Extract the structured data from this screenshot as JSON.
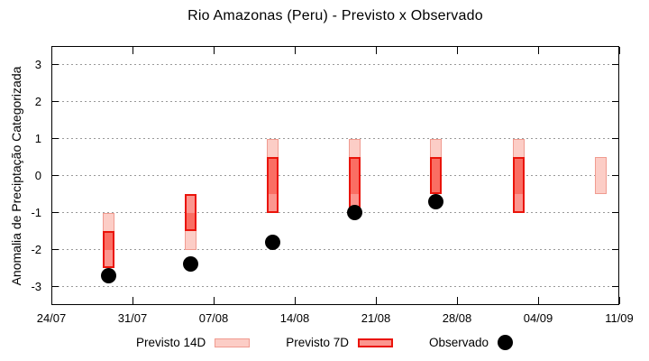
{
  "title": "Rio Amazonas (Peru) - Previsto x Observado",
  "chart_data": {
    "type": "bar",
    "subtype": "forecast-range-boxes-with-observed-scatter",
    "title": "Rio Amazonas (Peru) - Previsto x Observado",
    "xlabel": "",
    "ylabel": "Anomalia de Preciptação Categorizada",
    "ylim": [
      -3.5,
      3.5
    ],
    "yticks": [
      3,
      2,
      1,
      0,
      -1,
      -2,
      -3
    ],
    "xtick_labels": [
      "24/07",
      "31/07",
      "07/08",
      "14/08",
      "21/08",
      "28/08",
      "04/09",
      "11/09"
    ],
    "x_span_days": 49,
    "grid": "horizontal-dotted",
    "legend_position": "bottom-center",
    "series": [
      {
        "name": "Previsto 14D",
        "kind": "range",
        "points": [
          {
            "date": "29/07",
            "day": 4.9,
            "low": -2.0,
            "high": -1.0
          },
          {
            "date": "05/08",
            "day": 12.0,
            "low": -2.0,
            "high": -1.0
          },
          {
            "date": "12/08",
            "day": 19.1,
            "low": -0.5,
            "high": 1.0
          },
          {
            "date": "19/08",
            "day": 26.2,
            "low": -0.5,
            "high": 1.0
          },
          {
            "date": "26/08",
            "day": 33.2,
            "low": -0.5,
            "high": 1.0
          },
          {
            "date": "02/09",
            "day": 40.3,
            "low": -0.5,
            "high": 1.0
          },
          {
            "date": "09/09",
            "day": 47.4,
            "low": -0.5,
            "high": 0.5
          }
        ]
      },
      {
        "name": "Previsto 7D",
        "kind": "range",
        "points": [
          {
            "date": "29/07",
            "day": 4.9,
            "low": -2.5,
            "high": -1.5
          },
          {
            "date": "05/08",
            "day": 12.0,
            "low": -1.5,
            "high": -0.5
          },
          {
            "date": "12/08",
            "day": 19.1,
            "low": -1.0,
            "high": 0.5
          },
          {
            "date": "19/08",
            "day": 26.2,
            "low": -1.0,
            "high": 0.5
          },
          {
            "date": "26/08",
            "day": 33.2,
            "low": -0.5,
            "high": 0.5
          },
          {
            "date": "02/09",
            "day": 40.3,
            "low": -1.0,
            "high": 0.5
          }
        ]
      },
      {
        "name": "Observado",
        "kind": "scatter",
        "points": [
          {
            "date": "29/07",
            "day": 4.9,
            "value": -2.7
          },
          {
            "date": "05/08",
            "day": 12.0,
            "value": -2.4
          },
          {
            "date": "12/08",
            "day": 19.1,
            "value": -1.8
          },
          {
            "date": "19/08",
            "day": 26.2,
            "value": -1.0
          },
          {
            "date": "26/08",
            "day": 33.2,
            "value": -0.7
          }
        ]
      }
    ],
    "colors": {
      "previsto14_fill": "#fccdc6",
      "previsto14_border": "#f09b90",
      "previsto7_fill": "#fb968f",
      "overlap_fill": "#fa6e63",
      "previsto7_border": "#ea140a",
      "observado": "#000000",
      "grid": "#999999",
      "axis": "#000000"
    }
  },
  "legend": {
    "items": [
      {
        "label": "Previsto 14D"
      },
      {
        "label": "Previsto 7D"
      },
      {
        "label": "Observado"
      }
    ]
  }
}
